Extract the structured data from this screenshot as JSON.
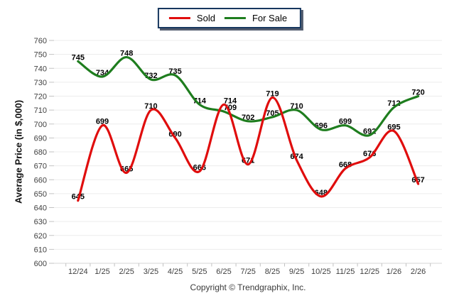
{
  "footer": {
    "copyright": "Copyright © Trendgraphix, Inc."
  },
  "chart_data": {
    "type": "line",
    "title": "",
    "xlabel": "",
    "ylabel": "Average Price (in $,000)",
    "categories": [
      "12/24",
      "1/25",
      "2/25",
      "3/25",
      "4/25",
      "5/25",
      "6/25",
      "7/25",
      "8/25",
      "9/25",
      "10/25",
      "11/25",
      "12/25",
      "1/26",
      "2/26"
    ],
    "series": [
      {
        "name": "Sold",
        "color": "#e00d0d",
        "values": [
          645,
          699,
          665,
          710,
          690,
          666,
          714,
          671,
          719,
          674,
          648,
          668,
          676,
          695,
          657
        ]
      },
      {
        "name": "For Sale",
        "color": "#1e7d1e",
        "values": [
          745,
          734,
          748,
          732,
          735,
          714,
          709,
          702,
          705,
          710,
          696,
          699,
          692,
          712,
          720
        ]
      }
    ],
    "ylim": [
      600,
      760
    ],
    "ytick_step": 10,
    "grid": true,
    "smooth": true,
    "data_labels": true,
    "legend_position": "top-center",
    "colors": {
      "gridline": "#ececec",
      "axis_line": "#d6d6d6",
      "tick": "#c2c2c2",
      "tick_label": "#3f3f3f",
      "data_label": "#000000",
      "legend_border": "#17375e"
    }
  }
}
